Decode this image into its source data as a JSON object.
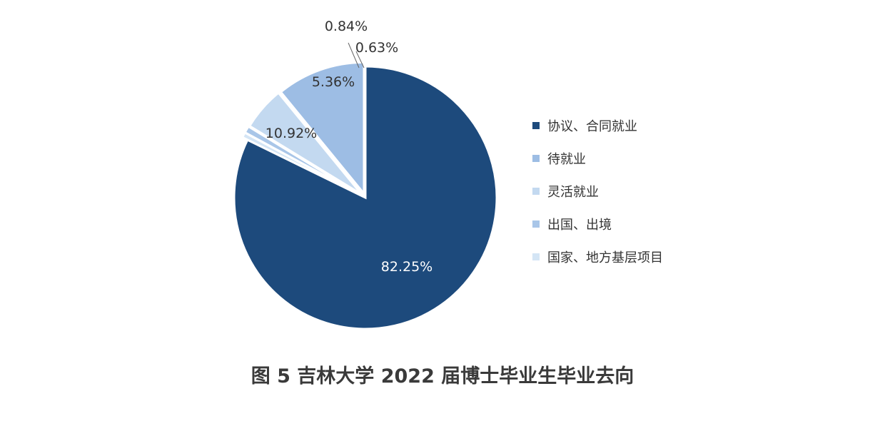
{
  "chart_data": {
    "type": "pie",
    "categories": [
      "协议、合同就业",
      "待就业",
      "灵活就业",
      "出国、出境",
      "国家、地方基层项目"
    ],
    "values": [
      82.25,
      10.92,
      5.36,
      0.84,
      0.63
    ],
    "value_labels": [
      "82.25%",
      "10.92%",
      "5.36%",
      "0.84%",
      "0.63%"
    ],
    "colors": [
      "#1d4a7c",
      "#9dbde4",
      "#c3d9f0",
      "#a9c6e8",
      "#d4e5f5"
    ],
    "label_colors": [
      "#ffffff",
      "#333333",
      "#333333",
      "#333333",
      "#333333"
    ],
    "legend_position": "right"
  },
  "caption": "图 5 吉林大学 2022 届博士毕业生毕业去向"
}
